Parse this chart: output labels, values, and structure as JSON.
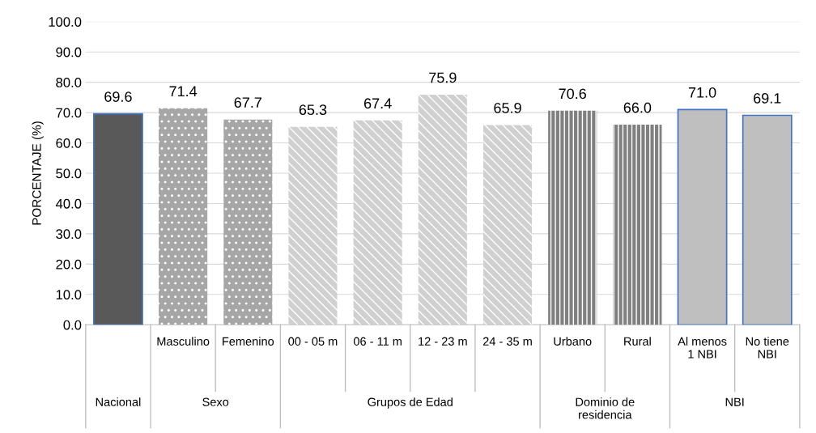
{
  "chart_data": {
    "type": "bar",
    "ylabel": "PORCENTAJE (%)",
    "categories": [
      null,
      "Masculino",
      "Femenino",
      "00 - 05 m",
      "06 - 11 m",
      "12 - 23 m",
      "24 - 35 m",
      "Urbano",
      "Rural",
      "Al menos\n1 NBI",
      "No tiene\nNBI"
    ],
    "values": [
      69.6,
      71.4,
      67.7,
      65.3,
      67.4,
      75.9,
      65.9,
      70.6,
      66.0,
      71.0,
      69.1
    ],
    "value_labels": [
      "69.6",
      "71.4",
      "67.7",
      "65.3",
      "67.4",
      "75.9",
      "65.9",
      "70.6",
      "66.0",
      "71.0",
      "69.1"
    ],
    "colors": [
      "#595959",
      "#a6a6a6",
      "#a6a6a6",
      "#d0d0d0",
      "#d0d0d0",
      "#d0d0d0",
      "#d0d0d0",
      "#808080",
      "#808080",
      "#bfbfbf",
      "#bfbfbf"
    ],
    "ylim": [
      0,
      100
    ],
    "yticks": [
      {
        "value": 0,
        "label": "0.0"
      },
      {
        "value": 10,
        "label": "10.0"
      },
      {
        "value": 20,
        "label": "20.0"
      },
      {
        "value": 30,
        "label": "30.0"
      },
      {
        "value": 40,
        "label": "40.0"
      },
      {
        "value": 50,
        "label": "50.0"
      },
      {
        "value": 60,
        "label": "60.0"
      },
      {
        "value": 70,
        "label": "70.0"
      },
      {
        "value": 80,
        "label": "80.0"
      },
      {
        "value": 90,
        "label": "90.0"
      },
      {
        "value": 100,
        "label": "100.0"
      }
    ],
    "grid": "y",
    "legend": false,
    "annotations": [
      "Nacional",
      "Sexo",
      "Grupos de Edad",
      "Dominio de\nresidencia",
      "NBI"
    ]
  }
}
